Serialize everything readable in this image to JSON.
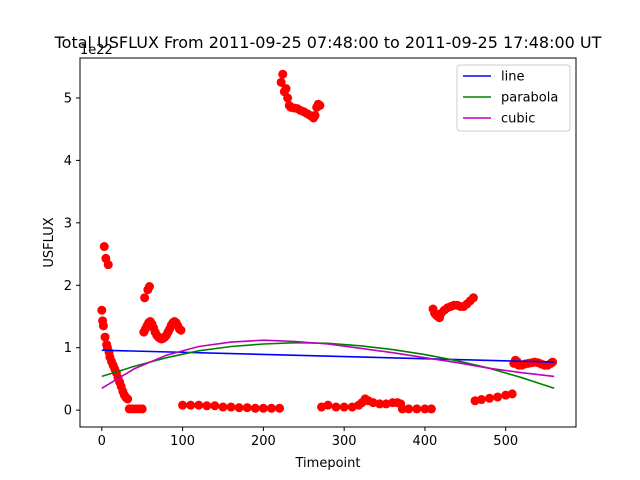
{
  "chart_data": {
    "type": "scatter",
    "title": "Total USFLUX From 2011-09-25 07:48:00 to 2011-09-25 17:48:00 UT",
    "xlabel": "Timepoint",
    "ylabel": "USFLUX",
    "y_offset_label": "1e22",
    "xlim": [
      -27,
      587
    ],
    "ylim": [
      -0.27,
      5.64
    ],
    "x_ticks": [
      0,
      100,
      200,
      300,
      400,
      500
    ],
    "y_ticks": [
      0,
      1,
      2,
      3,
      4,
      5
    ],
    "grid": false,
    "legend_position": "top-right",
    "colors": {
      "data": "#ff0000",
      "line": "#0000ff",
      "parabola": "#008000",
      "cubic": "#bf00bf"
    },
    "data_segments": [
      [
        [
          0,
          1.6
        ],
        [
          1,
          1.43
        ],
        [
          2,
          1.35
        ],
        [
          3,
          2.62
        ],
        [
          4,
          1.17
        ],
        [
          5,
          2.43
        ],
        [
          6,
          1.05
        ],
        [
          7,
          1.0
        ],
        [
          8,
          2.33
        ],
        [
          9,
          0.93
        ],
        [
          10,
          0.85
        ],
        [
          12,
          0.78
        ],
        [
          14,
          0.72
        ],
        [
          16,
          0.66
        ],
        [
          18,
          0.6
        ],
        [
          20,
          0.52
        ],
        [
          22,
          0.45
        ],
        [
          24,
          0.38
        ],
        [
          26,
          0.3
        ],
        [
          28,
          0.24
        ],
        [
          30,
          0.2
        ],
        [
          32,
          0.18
        ],
        [
          34,
          0.02
        ],
        [
          38,
          0.02
        ],
        [
          42,
          0.02
        ],
        [
          46,
          0.02
        ],
        [
          50,
          0.02
        ]
      ],
      [
        [
          52,
          1.25
        ],
        [
          53,
          1.8
        ],
        [
          54,
          1.3
        ],
        [
          56,
          1.35
        ],
        [
          57,
          1.93
        ],
        [
          58,
          1.4
        ],
        [
          59,
          1.98
        ],
        [
          60,
          1.42
        ],
        [
          62,
          1.38
        ],
        [
          64,
          1.32
        ],
        [
          66,
          1.25
        ],
        [
          68,
          1.2
        ],
        [
          70,
          1.17
        ],
        [
          72,
          1.15
        ],
        [
          74,
          1.14
        ],
        [
          76,
          1.15
        ],
        [
          78,
          1.17
        ],
        [
          80,
          1.2
        ],
        [
          82,
          1.25
        ],
        [
          84,
          1.3
        ],
        [
          86,
          1.36
        ],
        [
          88,
          1.4
        ],
        [
          90,
          1.42
        ],
        [
          92,
          1.4
        ],
        [
          94,
          1.35
        ],
        [
          96,
          1.3
        ],
        [
          98,
          1.28
        ]
      ],
      [
        [
          100,
          0.08
        ],
        [
          110,
          0.08
        ],
        [
          120,
          0.08
        ],
        [
          130,
          0.07
        ],
        [
          140,
          0.07
        ],
        [
          150,
          0.05
        ],
        [
          160,
          0.05
        ],
        [
          170,
          0.04
        ],
        [
          180,
          0.04
        ],
        [
          190,
          0.03
        ],
        [
          200,
          0.03
        ],
        [
          210,
          0.03
        ],
        [
          220,
          0.03
        ]
      ],
      [
        [
          222,
          5.25
        ],
        [
          224,
          5.38
        ],
        [
          226,
          5.1
        ],
        [
          228,
          5.15
        ],
        [
          230,
          5.0
        ],
        [
          232,
          4.88
        ],
        [
          234,
          4.85
        ],
        [
          238,
          4.84
        ],
        [
          242,
          4.83
        ],
        [
          246,
          4.8
        ],
        [
          250,
          4.78
        ],
        [
          254,
          4.75
        ],
        [
          258,
          4.72
        ],
        [
          262,
          4.68
        ],
        [
          264,
          4.72
        ],
        [
          266,
          4.85
        ],
        [
          268,
          4.9
        ],
        [
          270,
          4.88
        ]
      ],
      [
        [
          272,
          0.05
        ],
        [
          280,
          0.08
        ],
        [
          290,
          0.05
        ],
        [
          300,
          0.05
        ],
        [
          310,
          0.05
        ],
        [
          318,
          0.08
        ],
        [
          322,
          0.12
        ],
        [
          326,
          0.18
        ],
        [
          330,
          0.15
        ],
        [
          336,
          0.12
        ],
        [
          344,
          0.1
        ],
        [
          352,
          0.1
        ],
        [
          360,
          0.12
        ],
        [
          366,
          0.12
        ],
        [
          370,
          0.1
        ]
      ],
      [
        [
          372,
          0.02
        ],
        [
          380,
          0.02
        ],
        [
          390,
          0.02
        ],
        [
          400,
          0.02
        ],
        [
          408,
          0.02
        ]
      ],
      [
        [
          410,
          1.62
        ],
        [
          412,
          1.55
        ],
        [
          414,
          1.52
        ],
        [
          416,
          1.5
        ],
        [
          418,
          1.48
        ],
        [
          420,
          1.55
        ],
        [
          424,
          1.6
        ],
        [
          428,
          1.64
        ],
        [
          432,
          1.66
        ],
        [
          436,
          1.68
        ],
        [
          440,
          1.68
        ],
        [
          444,
          1.66
        ],
        [
          448,
          1.66
        ],
        [
          452,
          1.7
        ],
        [
          456,
          1.75
        ],
        [
          460,
          1.8
        ]
      ],
      [
        [
          462,
          0.15
        ],
        [
          470,
          0.17
        ],
        [
          480,
          0.19
        ],
        [
          490,
          0.21
        ],
        [
          500,
          0.24
        ],
        [
          508,
          0.26
        ]
      ],
      [
        [
          510,
          0.75
        ],
        [
          512,
          0.8
        ],
        [
          514,
          0.78
        ],
        [
          516,
          0.72
        ],
        [
          520,
          0.72
        ],
        [
          524,
          0.74
        ],
        [
          528,
          0.75
        ],
        [
          532,
          0.76
        ],
        [
          536,
          0.77
        ],
        [
          540,
          0.76
        ],
        [
          544,
          0.74
        ],
        [
          548,
          0.72
        ],
        [
          552,
          0.72
        ],
        [
          556,
          0.75
        ],
        [
          558,
          0.77
        ]
      ]
    ],
    "fits": [
      {
        "name": "line",
        "color": "#0000ff",
        "points": [
          [
            0,
            0.96
          ],
          [
            560,
            0.77
          ]
        ]
      },
      {
        "name": "parabola",
        "color": "#008000",
        "points": [
          [
            0,
            0.54
          ],
          [
            40,
            0.7
          ],
          [
            80,
            0.84
          ],
          [
            120,
            0.95
          ],
          [
            160,
            1.02
          ],
          [
            200,
            1.06
          ],
          [
            240,
            1.08
          ],
          [
            280,
            1.07
          ],
          [
            320,
            1.03
          ],
          [
            360,
            0.97
          ],
          [
            400,
            0.89
          ],
          [
            440,
            0.79
          ],
          [
            480,
            0.67
          ],
          [
            520,
            0.52
          ],
          [
            560,
            0.35
          ]
        ]
      },
      {
        "name": "cubic",
        "color": "#bf00bf",
        "points": [
          [
            0,
            0.35
          ],
          [
            40,
            0.66
          ],
          [
            80,
            0.88
          ],
          [
            120,
            1.02
          ],
          [
            160,
            1.09
          ],
          [
            200,
            1.12
          ],
          [
            240,
            1.1
          ],
          [
            280,
            1.06
          ],
          [
            320,
            0.99
          ],
          [
            360,
            0.92
          ],
          [
            400,
            0.84
          ],
          [
            440,
            0.76
          ],
          [
            480,
            0.67
          ],
          [
            520,
            0.6
          ],
          [
            560,
            0.54
          ]
        ]
      }
    ]
  }
}
